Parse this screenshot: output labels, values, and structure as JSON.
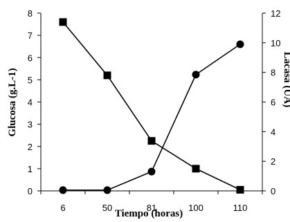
{
  "chart_data": {
    "type": "line",
    "xlabel": "Tiempo (horas)",
    "ylabel_left": "Glucosa (g.L-1)",
    "ylabel_right": "Lacasa (UA)",
    "categories": [
      "6",
      "50",
      "81",
      "100",
      "110"
    ],
    "ylim_left": [
      0,
      8
    ],
    "yticks_left": [
      "0",
      "1",
      "2",
      "3",
      "4",
      "5",
      "6",
      "7",
      "8"
    ],
    "ylim_right": [
      0,
      12
    ],
    "yticks_right": [
      "0",
      "2",
      "4",
      "6",
      "8",
      "10",
      "12"
    ],
    "grid": false,
    "legend": false,
    "series": [
      {
        "marker": "square",
        "axis": "left",
        "values": [
          7.6,
          5.2,
          2.25,
          1.0,
          0.05
        ]
      },
      {
        "marker": "circle",
        "axis": "right",
        "values": [
          0.05,
          0.05,
          1.3,
          7.85,
          9.9
        ]
      }
    ]
  }
}
